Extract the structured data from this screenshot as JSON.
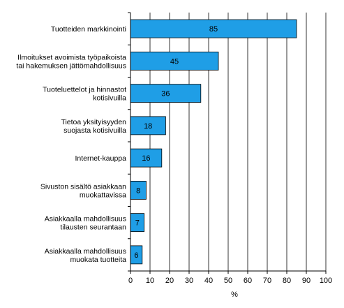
{
  "chart_data": {
    "type": "bar",
    "orientation": "horizontal",
    "categories": [
      [
        "Tuotteiden markkinointi"
      ],
      [
        "Ilmoitukset avoimista työpaikoista",
        "tai hakemuksen jättömahdollisuus"
      ],
      [
        "Tuoteluettelot ja hinnastot",
        "kotisivuilla"
      ],
      [
        "Tietoa yksityisyyden",
        "suojasta kotisivuilla"
      ],
      [
        "Internet-kauppa"
      ],
      [
        "Sivuston sisältö asiakkaan",
        "muokattavissa"
      ],
      [
        "Asiakkaalla mahdollisuus",
        "tilausten seurantaan"
      ],
      [
        "Asiakkaalla mahdollisuus",
        "muokata tuotteita"
      ]
    ],
    "values": [
      85,
      45,
      36,
      18,
      16,
      8,
      7,
      6
    ],
    "xlabel": "%",
    "xlim": [
      0,
      100
    ],
    "xticks": [
      0,
      10,
      20,
      30,
      40,
      50,
      60,
      70,
      80,
      90,
      100
    ],
    "grid": "vertical",
    "colors": {
      "bar_fill": "#1f9ee6",
      "bar_stroke": "#000000",
      "grid": "#000000",
      "axis": "#000000"
    }
  }
}
